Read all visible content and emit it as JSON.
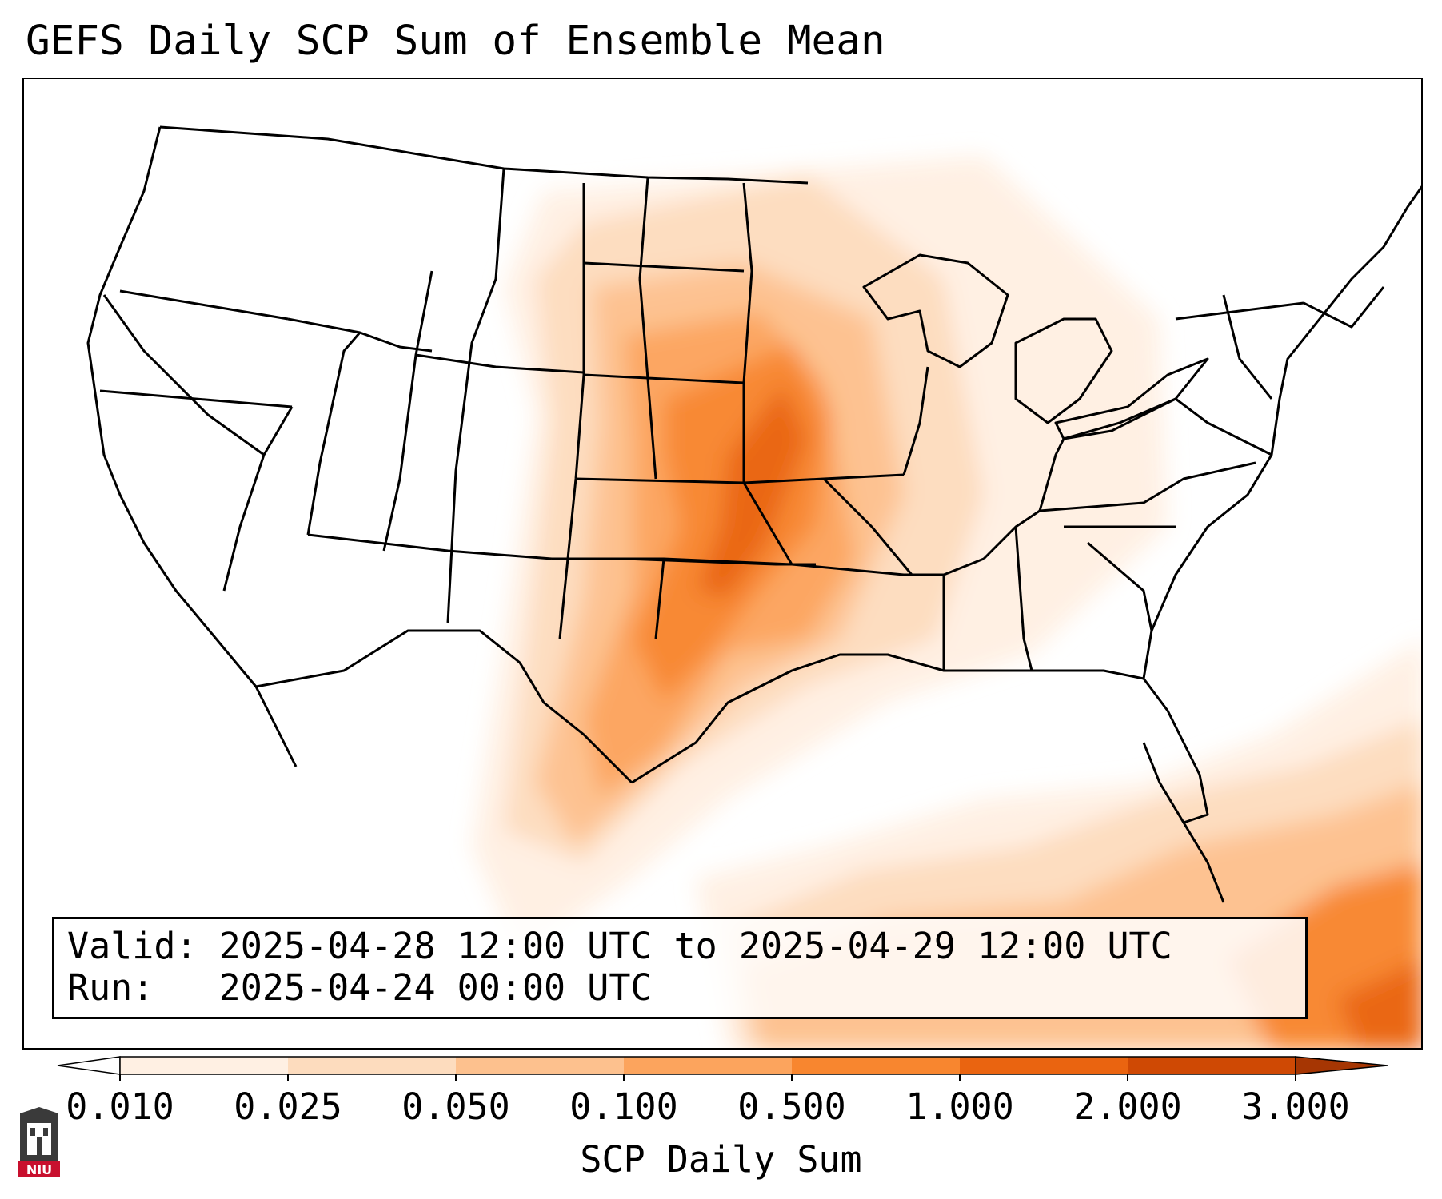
{
  "title": "GEFS Daily SCP Sum of Ensemble Mean",
  "info": {
    "valid_label": "Valid:",
    "valid_value": "2025-04-28 12:00 UTC to 2025-04-29 12:00 UTC",
    "run_label": "Run:",
    "run_value": "2025-04-24 00:00 UTC"
  },
  "colorbar": {
    "label": "SCP Daily Sum",
    "ticks": [
      "0.010",
      "0.025",
      "0.050",
      "0.100",
      "0.500",
      "1.000",
      "2.000",
      "3.000"
    ],
    "colors": [
      "#fff0e3",
      "#fddcbe",
      "#fdc18e",
      "#fca45d",
      "#f8862f",
      "#ea6410",
      "#cf4904"
    ],
    "under_color": "#ffffff",
    "over_color": "#a63603"
  },
  "logo": {
    "text": "NIU",
    "color": "#c8102e"
  }
}
